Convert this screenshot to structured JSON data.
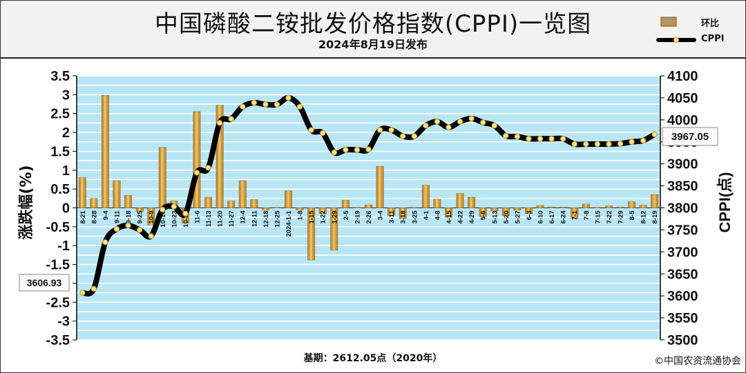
{
  "header": {
    "title": "中国磷酸二铵批发价格指数(CPPI)一览图",
    "subtitle": "2024年8月19日发布"
  },
  "legend": {
    "bar_label": "环比",
    "line_label": "CPPI"
  },
  "footer": {
    "base_note": "基期：2612.05点（2020年）",
    "copyright": "©中国农资流通协会"
  },
  "colors": {
    "bar_fill": "#c8923a",
    "bar_highlight": "#f0d070",
    "line": "#000000",
    "marker": "#f5e6a0",
    "plot_bg": "#b8e6f5",
    "grid": "#ffffff"
  },
  "chart_data": {
    "type": "bar+line",
    "left_axis": {
      "label": "涨跌幅(%)",
      "range": [
        -3.5,
        3.5
      ],
      "ticks": [
        "3.5",
        "3",
        "2.5",
        "2",
        "1.5",
        "1",
        "0.5",
        "0",
        "-0.5",
        "-1",
        "-1.5",
        "-2",
        "-2.5",
        "-3",
        "-3.5"
      ]
    },
    "right_axis": {
      "label": "CPPI(点)",
      "range": [
        3500,
        4100
      ],
      "ticks": [
        "4100",
        "4050",
        "4000",
        "3950",
        "3900",
        "3850",
        "3800",
        "3750",
        "3700",
        "3650",
        "3600",
        "3550",
        "3500"
      ]
    },
    "categories": [
      "8-21",
      "8-28",
      "9-4",
      "9-11",
      "9-18",
      "9-25",
      "10-9",
      "10-16",
      "10-23",
      "10-30",
      "11-6",
      "11-13",
      "11-20",
      "11-27",
      "12-4",
      "12-11",
      "12-18",
      "12-25",
      "2024-1-1",
      "1-8",
      "1-15",
      "1-22",
      "1-29",
      "2-5",
      "2-19",
      "2-26",
      "3-4",
      "3-11",
      "3-18",
      "3-25",
      "4-1",
      "4-8",
      "4-15",
      "4-22",
      "4-29",
      "5-6",
      "5-13",
      "5-20",
      "5-27",
      "6-3",
      "6-10",
      "6-17",
      "6-24",
      "7-1",
      "7-8",
      "7-15",
      "7-22",
      "7-29",
      "8-5",
      "8-12",
      "8-19"
    ],
    "series": [
      {
        "name": "环比",
        "type": "bar",
        "axis": "left",
        "values": [
          0.8,
          0.25,
          2.98,
          0.72,
          0.33,
          -0.1,
          -0.45,
          1.6,
          0.18,
          -0.4,
          2.55,
          0.28,
          2.72,
          0.18,
          0.72,
          0.22,
          -0.05,
          0.01,
          0.45,
          -0.05,
          -1.38,
          -0.15,
          -1.12,
          0.2,
          0.01,
          0.08,
          1.1,
          -0.2,
          -0.28,
          0.01,
          0.6,
          0.23,
          -0.25,
          0.38,
          0.28,
          -0.23,
          -0.08,
          -0.2,
          -0.06,
          -0.15,
          0.06,
          0.02,
          0.02,
          -0.28,
          0.1,
          0.01,
          0.05,
          0.02,
          0.16,
          0.07,
          0.35
        ]
      },
      {
        "name": "CPPI",
        "type": "line",
        "axis": "right",
        "values": [
          3606.93,
          3616,
          3722,
          3752,
          3760,
          3750,
          3736,
          3796,
          3803,
          3787,
          3880,
          3891,
          3993,
          4002,
          4030,
          4039,
          4035,
          4035,
          4050,
          4030,
          3977,
          3970,
          3926,
          3932,
          3932,
          3933,
          3977,
          3977,
          3963,
          3963,
          3987,
          3996,
          3983,
          3996,
          4003,
          3994,
          3987,
          3964,
          3962,
          3957,
          3957,
          3957,
          3957,
          3945,
          3945,
          3945,
          3945,
          3946,
          3950,
          3953,
          3967.05
        ]
      }
    ],
    "annotations": [
      "3606.93",
      "3967.05"
    ]
  }
}
